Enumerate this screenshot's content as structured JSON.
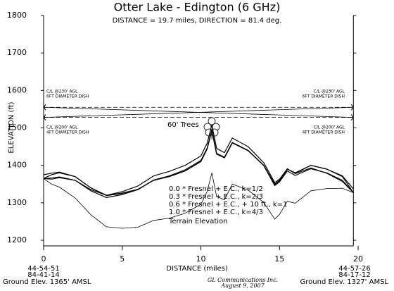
{
  "chart_data": {
    "type": "line",
    "title": "Otter Lake - Edington (6 GHz)",
    "subtitle": "DISTANCE = 19.7 miles, DIRECTION =  81.4 deg.",
    "xlabel": "DISTANCE (miles)",
    "ylabel": "ELEVATION (ft)",
    "x": [
      0,
      0.5,
      1,
      2,
      3,
      4,
      5,
      6,
      7,
      8,
      9,
      10,
      10.4,
      10.7,
      11,
      11.5,
      12,
      13,
      14,
      14.7,
      15,
      15.5,
      16,
      17,
      18,
      19,
      19.7
    ],
    "xlim": [
      0,
      20
    ],
    "xticks": [
      0,
      5,
      10,
      15,
      20
    ],
    "ylim": [
      1200,
      1800
    ],
    "yticks": [
      1200,
      1300,
      1400,
      1500,
      1600,
      1700,
      1800
    ],
    "series": [
      {
        "name": "0.0 * Fresnel + E.C., k=1/2",
        "color": "#000000",
        "values": [
          1365,
          1363,
          1367,
          1360,
          1335,
          1320,
          1330,
          1345,
          1372,
          1384,
          1400,
          1425,
          1459,
          1508,
          1445,
          1434,
          1473,
          1450,
          1407,
          1354,
          1363,
          1391,
          1378,
          1393,
          1379,
          1357,
          1327
        ]
      },
      {
        "name": "0.3 * Fresnel + E.C., k=2/3",
        "color": "#000000",
        "values": [
          1365,
          1366,
          1369,
          1360,
          1332,
          1314,
          1322,
          1335,
          1361,
          1372,
          1388,
          1413,
          1446,
          1496,
          1432,
          1422,
          1461,
          1440,
          1399,
          1346,
          1356,
          1385,
          1373,
          1391,
          1380,
          1360,
          1327
        ]
      },
      {
        "name": "0.6 * Fresnel + E.C., + 10 ft., k=1",
        "color": "#000000",
        "values": [
          1375,
          1379,
          1382,
          1370,
          1340,
          1319,
          1325,
          1336,
          1360,
          1370,
          1385,
          1410,
          1444,
          1493,
          1430,
          1420,
          1460,
          1439,
          1400,
          1349,
          1359,
          1390,
          1379,
          1400,
          1390,
          1372,
          1337
        ]
      },
      {
        "name": "1.0 * Fresnel + E.C., k=4/3",
        "color": "#000000",
        "values": [
          1365,
          1375,
          1380,
          1370,
          1340,
          1320,
          1326,
          1336,
          1360,
          1370,
          1385,
          1410,
          1444,
          1493,
          1430,
          1420,
          1460,
          1440,
          1400,
          1350,
          1360,
          1390,
          1380,
          1400,
          1390,
          1370,
          1327
        ]
      },
      {
        "name": "Terrain Elevation",
        "color": "#000000",
        "values": [
          1365,
          1350,
          1342,
          1313,
          1268,
          1236,
          1232,
          1235,
          1253,
          1259,
          1272,
          1296,
          1330,
          1380,
          1317,
          1308,
          1350,
          1334,
          1301,
          1256,
          1269,
          1304,
          1299,
          1332,
          1338,
          1339,
          1327
        ]
      }
    ],
    "antenna_lines": [
      {
        "values": [
          1555,
          1555
        ],
        "style": "dashed"
      },
      {
        "values": [
          1528,
          1528
        ],
        "style": "dashed"
      },
      {
        "values": [
          1555,
          1528
        ],
        "style": "solid"
      },
      {
        "values": [
          1528,
          1555
        ],
        "style": "solid"
      }
    ],
    "trees_label": "60' Trees",
    "left_site": {
      "antenna_high": "C/L @230' AGL",
      "dish_high": "6FT DIAMETER DISH",
      "antenna_low": "C/L @200' AGL",
      "dish_low": "4FT DIAMETER DISH",
      "latitude": "44-54-51",
      "longitude": "84-41-14",
      "ground": "Ground Elev. 1365' AMSL"
    },
    "right_site": {
      "antenna_high": "C/L @230' AGL",
      "dish_high": "6FT DIAMETER DISH",
      "antenna_low": "C/L @200' AGL",
      "dish_low": "4FT DIAMETER DISH",
      "latitude": "44-57-26",
      "longitude": "84-17-12",
      "ground": "Ground Elev. 1327' AMSL"
    },
    "footer": [
      "GL Communications Inc.",
      "August 9, 2007"
    ]
  }
}
